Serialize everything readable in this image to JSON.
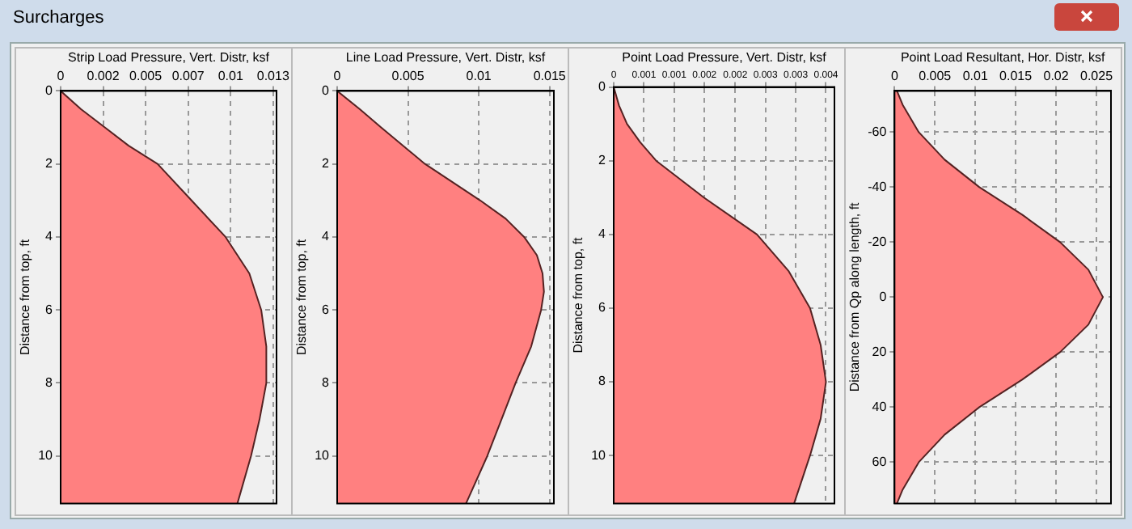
{
  "chart_data": [
    {
      "type": "area",
      "orientation": "horizontal",
      "annotations": [
        "Surcharges"
      ],
      "xlabel": "Strip Load Pressure, Vert. Distr, ksf",
      "ylabel": "Distance from top, ft",
      "grid": true,
      "marker": "none",
      "line_style": "solid",
      "xlim": [
        0,
        0.0127
      ],
      "xticks": [
        0,
        {
          "value": 0.0025,
          "label": "0.002"
        },
        0.005,
        {
          "value": 0.0075,
          "label": "0.007"
        },
        0.01,
        {
          "value": 0.0125,
          "label": "0.013"
        }
      ],
      "ylim": [
        11.3,
        0
      ],
      "yticks": [
        0,
        2,
        4,
        6,
        8,
        10
      ],
      "series": [
        {
          "color": "#ff8080",
          "x": [
            0,
            0.5,
            1,
            1.5,
            2,
            3,
            4,
            5,
            6,
            7,
            8,
            9,
            10,
            11.3
          ],
          "values": [
            0,
            0.0012,
            0.0026,
            0.004,
            0.0057,
            0.0077,
            0.0097,
            0.0111,
            0.0118,
            0.0121,
            0.0121,
            0.0117,
            0.0112,
            0.0104
          ]
        }
      ]
    },
    {
      "type": "area",
      "orientation": "horizontal",
      "xlabel": "Line Load Pressure, Vert. Distr, ksf",
      "ylabel": "Distance from top, ft",
      "grid": true,
      "marker": "none",
      "line_style": "solid",
      "xlim": [
        0,
        0.0153
      ],
      "xticks": [
        0,
        0.005,
        0.01,
        0.015
      ],
      "ylim": [
        11.3,
        0
      ],
      "yticks": [
        0,
        2,
        4,
        6,
        8,
        10
      ],
      "series": [
        {
          "color": "#ff8080",
          "x": [
            0,
            0.5,
            1,
            2,
            3,
            3.5,
            4,
            4.5,
            5,
            5.5,
            6,
            7,
            8,
            9,
            10,
            11.3
          ],
          "values": [
            0,
            0.0016,
            0.0031,
            0.0062,
            0.0101,
            0.0119,
            0.0132,
            0.0141,
            0.0145,
            0.0146,
            0.0144,
            0.0137,
            0.0126,
            0.0116,
            0.0106,
            0.0091
          ]
        }
      ]
    },
    {
      "type": "area",
      "orientation": "horizontal",
      "xlabel": "Point Load Pressure, Vert. Distr, ksf",
      "ylabel": "Distance from top, ft",
      "grid": true,
      "marker": "none",
      "line_style": "solid",
      "xlim": [
        0,
        0.00416
      ],
      "xticks": [
        0,
        {
          "value": 0.00057,
          "label": "0.001"
        },
        {
          "value": 0.00114,
          "label": "0.001"
        },
        {
          "value": 0.00171,
          "label": "0.002"
        },
        {
          "value": 0.00229,
          "label": "0.002"
        },
        {
          "value": 0.00286,
          "label": "0.003"
        },
        {
          "value": 0.00343,
          "label": "0.003"
        },
        0.004
      ],
      "ylim": [
        11.3,
        0
      ],
      "yticks": [
        0,
        2,
        4,
        6,
        8,
        10
      ],
      "series": [
        {
          "color": "#ff8080",
          "x": [
            0,
            0.5,
            1,
            1.5,
            2,
            3,
            4,
            5,
            6,
            7,
            8,
            9,
            10,
            11.3
          ],
          "values": [
            0,
            0.0001,
            0.00025,
            0.0005,
            0.0008,
            0.0017,
            0.0027,
            0.0033,
            0.0037,
            0.0039,
            0.004,
            0.0039,
            0.0037,
            0.0034
          ]
        }
      ]
    },
    {
      "type": "area",
      "orientation": "horizontal",
      "xlabel": "Point Load Resultant, Hor. Distr, ksf",
      "ylabel": "Distance from Qp along length, ft",
      "grid": true,
      "marker": "none",
      "line_style": "solid",
      "xlim": [
        0,
        0.0268
      ],
      "xticks": [
        0,
        0.005,
        0.01,
        0.015,
        0.02,
        0.025
      ],
      "ylim": [
        75,
        -75
      ],
      "yticks": [
        -60,
        -40,
        -20,
        0,
        20,
        40,
        60
      ],
      "series": [
        {
          "color": "#ff8080",
          "x": [
            -75,
            -70,
            -60,
            -50,
            -40,
            -30,
            -20,
            -10,
            0,
            10,
            20,
            30,
            40,
            50,
            60,
            70,
            75
          ],
          "values": [
            0.0003,
            0.001,
            0.003,
            0.0062,
            0.0105,
            0.0158,
            0.0205,
            0.024,
            0.0258,
            0.024,
            0.0205,
            0.0158,
            0.0105,
            0.0062,
            0.003,
            0.001,
            0.0003
          ]
        }
      ]
    }
  ]
}
